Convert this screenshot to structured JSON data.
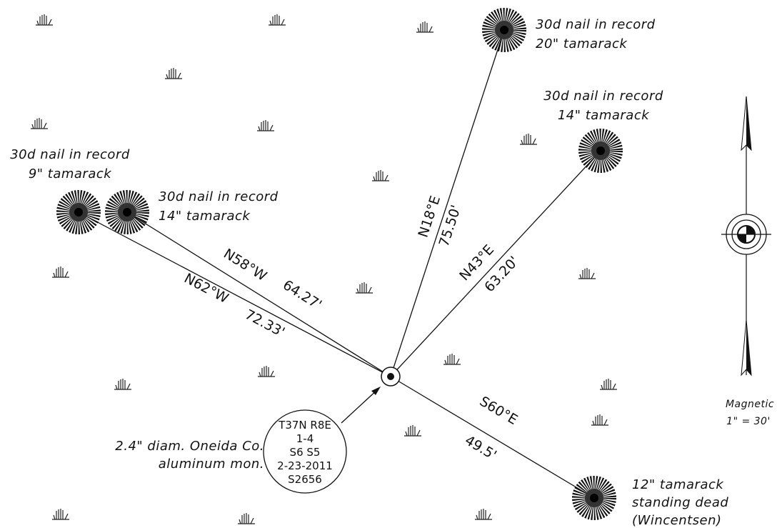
{
  "trees": [
    {
      "lines": [
        "30d nail in record",
        "20\" tamarack"
      ]
    },
    {
      "lines": [
        "30d nail in record",
        "14\" tamarack"
      ]
    },
    {
      "lines": [
        "30d nail in record",
        "9\" tamarack"
      ]
    },
    {
      "lines": [
        "30d nail in record",
        "14\" tamarack"
      ]
    },
    {
      "lines": [
        "12\" tamarack",
        "standing dead",
        "(Wincentsen)"
      ]
    }
  ],
  "bearings": [
    {
      "bearing": "N18°E",
      "distance": "75.50'"
    },
    {
      "bearing": "N43°E",
      "distance": "63.20'"
    },
    {
      "bearing": "N62°W",
      "distance": "72.33'"
    },
    {
      "bearing": "N58°W",
      "distance": "64.27'"
    },
    {
      "bearing": "S60°E",
      "distance": "49.5'"
    }
  ],
  "monument": {
    "lines": [
      "T37N R8E",
      "1-4",
      "S6  S5",
      "2-23-2011",
      "S2656"
    ]
  },
  "note": {
    "lines": [
      "2.4\" diam. Oneida Co.",
      "aluminum mon."
    ]
  },
  "north": {
    "label": "Magnetic",
    "scale": "1\" = 30'"
  }
}
